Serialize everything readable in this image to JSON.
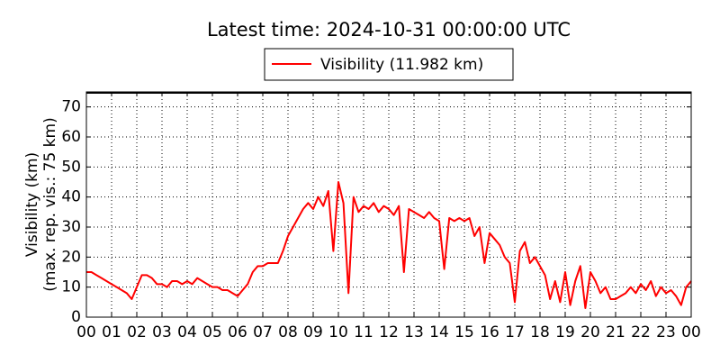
{
  "chart_data": {
    "type": "line",
    "title": "Latest time: 2024-10-31 00:00:00 UTC",
    "ylabel": [
      "Visibility (km)",
      "(max. rep. vis.: 75 km)"
    ],
    "x": [
      0,
      0.2,
      0.4,
      0.6,
      0.8,
      1,
      1.2,
      1.4,
      1.6,
      1.8,
      2,
      2.2,
      2.4,
      2.6,
      2.8,
      3,
      3.2,
      3.4,
      3.6,
      3.8,
      4,
      4.2,
      4.4,
      4.6,
      4.8,
      5,
      5.2,
      5.4,
      5.6,
      5.8,
      6,
      6.2,
      6.4,
      6.6,
      6.8,
      7,
      7.2,
      7.4,
      7.6,
      7.8,
      8,
      8.2,
      8.4,
      8.6,
      8.8,
      9,
      9.2,
      9.4,
      9.6,
      9.8,
      10,
      10.2,
      10.4,
      10.6,
      10.8,
      11,
      11.2,
      11.4,
      11.6,
      11.8,
      12,
      12.2,
      12.4,
      12.6,
      12.8,
      13,
      13.2,
      13.4,
      13.6,
      13.8,
      14,
      14.2,
      14.4,
      14.6,
      14.8,
      15,
      15.2,
      15.4,
      15.6,
      15.8,
      16,
      16.2,
      16.4,
      16.6,
      16.8,
      17,
      17.2,
      17.4,
      17.6,
      17.8,
      18,
      18.2,
      18.4,
      18.6,
      18.8,
      19,
      19.2,
      19.4,
      19.6,
      19.8,
      20,
      20.2,
      20.4,
      20.6,
      20.8,
      21,
      21.2,
      21.4,
      21.6,
      21.8,
      22,
      22.2,
      22.4,
      22.6,
      22.8,
      23,
      23.2,
      23.4,
      23.6,
      23.8,
      24
    ],
    "series": [
      {
        "name": "Visibility (11.982 km)",
        "color": "#ff0000",
        "values": [
          15,
          15,
          14,
          13,
          12,
          11,
          10,
          9,
          8,
          6,
          10,
          14,
          14,
          13,
          11,
          11,
          10,
          12,
          12,
          11,
          12,
          11,
          13,
          12,
          11,
          10,
          10,
          9,
          9,
          8,
          7,
          9,
          11,
          15,
          17,
          17,
          18,
          18,
          18,
          22,
          27,
          30,
          33,
          36,
          38,
          36,
          40,
          37,
          42,
          22,
          45,
          38,
          8,
          40,
          35,
          37,
          36,
          38,
          35,
          37,
          36,
          34,
          37,
          15,
          36,
          35,
          34,
          33,
          35,
          33,
          32,
          16,
          33,
          32,
          33,
          32,
          33,
          27,
          30,
          18,
          28,
          26,
          24,
          20,
          18,
          5,
          22,
          25,
          18,
          20,
          17,
          14,
          6,
          12,
          5,
          15,
          4,
          12,
          17,
          3,
          15,
          12,
          8,
          10,
          6,
          6,
          7,
          8,
          10,
          8,
          11,
          9,
          12,
          7,
          10,
          8,
          9,
          7,
          4,
          10,
          11.982
        ]
      }
    ],
    "xlim": [
      0,
      24
    ],
    "xticks": [
      {
        "value": 0,
        "label": "00"
      },
      {
        "value": 1,
        "label": "01"
      },
      {
        "value": 2,
        "label": "02"
      },
      {
        "value": 3,
        "label": "03"
      },
      {
        "value": 4,
        "label": "04"
      },
      {
        "value": 5,
        "label": "05"
      },
      {
        "value": 6,
        "label": "06"
      },
      {
        "value": 7,
        "label": "07"
      },
      {
        "value": 8,
        "label": "08"
      },
      {
        "value": 9,
        "label": "09"
      },
      10,
      11,
      12,
      13,
      14,
      15,
      16,
      17,
      18,
      19,
      20,
      21,
      22,
      23,
      {
        "value": 24,
        "label": "00"
      }
    ],
    "ylim": [
      0,
      75
    ],
    "yticks": [
      0,
      10,
      20,
      30,
      40,
      50,
      60,
      70
    ],
    "grid": true,
    "legend": "top"
  }
}
